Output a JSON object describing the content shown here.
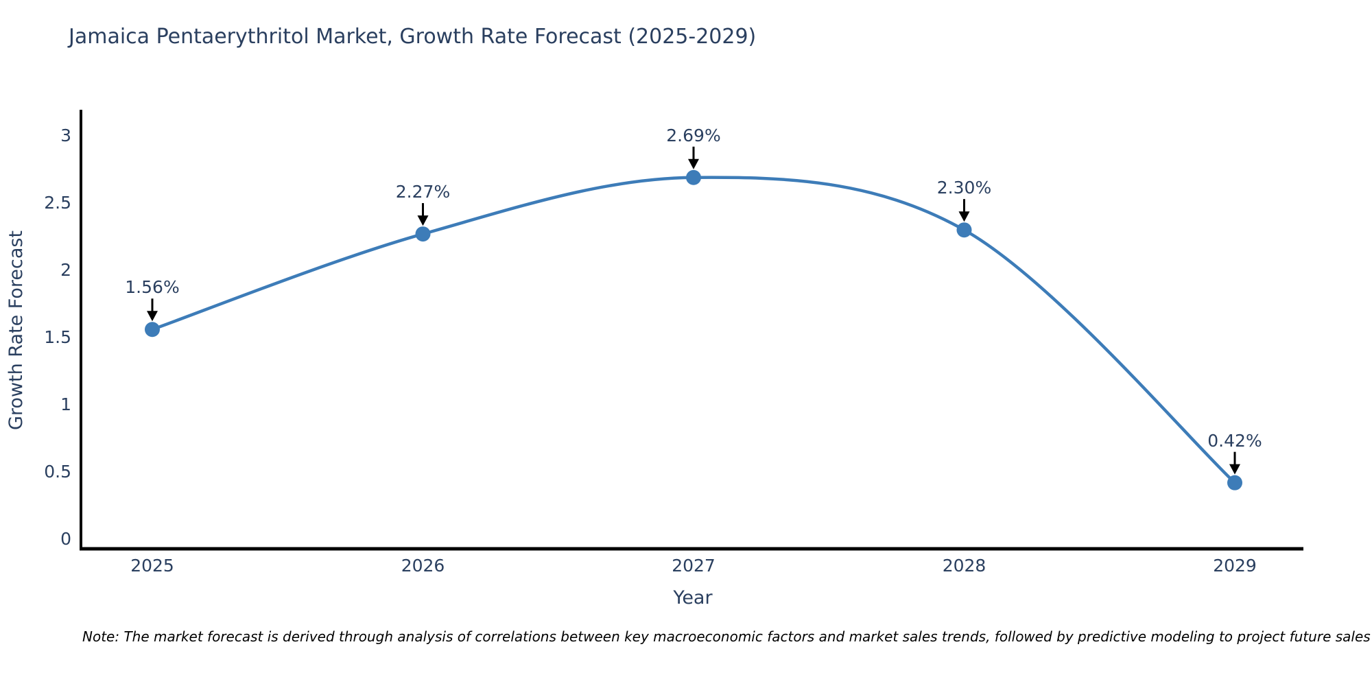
{
  "page": {
    "note": "Note: The market forecast is derived through analysis of correlations between key macroeconomic factors and market sales trends, followed by predictive modeling to project future sales"
  },
  "chart_data": {
    "type": "line",
    "title": "Jamaica Pentaerythritol Market, Growth Rate Forecast (2025-2029)",
    "xlabel": "Year",
    "ylabel": "Growth Rate Forecast",
    "x": [
      2025,
      2026,
      2027,
      2028,
      2029
    ],
    "values": [
      1.56,
      2.27,
      2.69,
      2.3,
      0.42
    ],
    "point_labels": [
      "1.56%",
      "2.27%",
      "2.69%",
      "2.30%",
      "0.42%"
    ],
    "xtick_labels": [
      "2025",
      "2026",
      "2027",
      "2028",
      "2029"
    ],
    "yticks": [
      0,
      0.5,
      1,
      1.5,
      2,
      2.5,
      3
    ],
    "ytick_labels": [
      "0",
      "0.5",
      "1",
      "1.5",
      "2",
      "2.5",
      "3"
    ],
    "ylim": [
      -0.08,
      3.2
    ],
    "line_shape": "spline",
    "grid": false,
    "legend": "none",
    "markers": true,
    "annotation_arrows": true,
    "colors": {
      "line": "#3d7cb8",
      "marker": "#3d7cb8",
      "axis": "#000000",
      "text": "#2a3f5f",
      "arrow": "#000000",
      "background": "#ffffff"
    }
  }
}
